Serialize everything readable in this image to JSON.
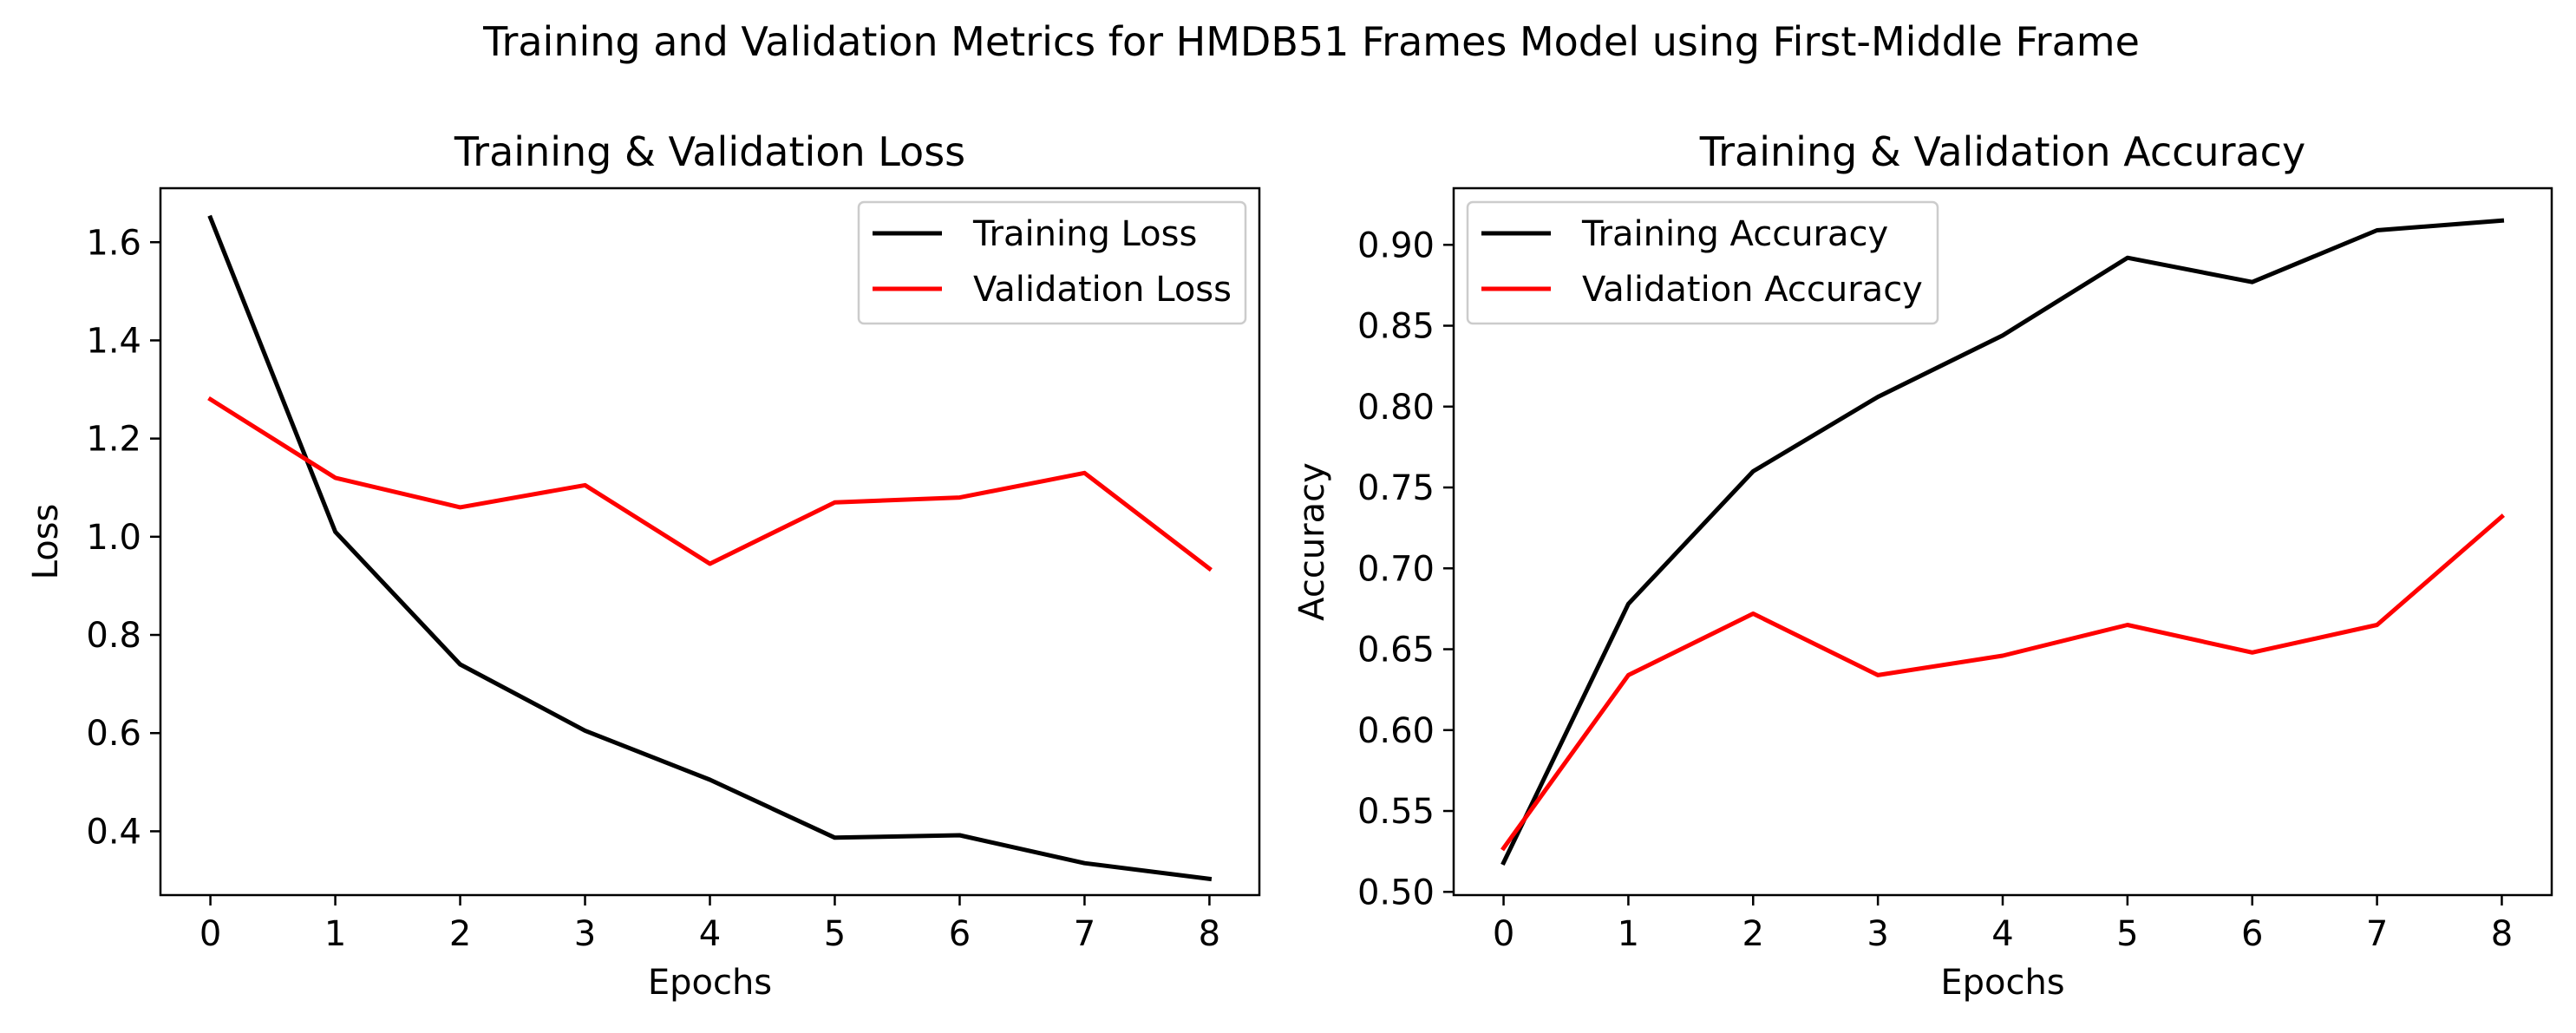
{
  "figure": {
    "suptitle": "Training and Validation Metrics for HMDB51 Frames Model using First-Middle Frame"
  },
  "chart_data": [
    {
      "type": "line",
      "title": "Training & Validation Loss",
      "xlabel": "Epochs",
      "ylabel": "Loss",
      "x": [
        0,
        1,
        2,
        3,
        4,
        5,
        6,
        7,
        8
      ],
      "xlim": [
        -0.4,
        8.4
      ],
      "ylim": [
        0.27,
        1.71
      ],
      "xticks": [
        0,
        1,
        2,
        3,
        4,
        5,
        6,
        7,
        8
      ],
      "yticks": [
        0.4,
        0.6,
        0.8,
        1.0,
        1.2,
        1.4,
        1.6
      ],
      "ytick_labels": [
        "0.4",
        "0.6",
        "0.8",
        "1.0",
        "1.2",
        "1.4",
        "1.6"
      ],
      "grid": false,
      "legend_position": "upper-right",
      "series": [
        {
          "name": "Training Loss",
          "color": "#000000",
          "values": [
            1.65,
            1.01,
            0.74,
            0.605,
            0.505,
            0.387,
            0.392,
            0.335,
            0.303
          ]
        },
        {
          "name": "Validation Loss",
          "color": "#ff0000",
          "values": [
            1.28,
            1.12,
            1.06,
            1.105,
            0.945,
            1.07,
            1.08,
            1.13,
            0.935
          ]
        }
      ]
    },
    {
      "type": "line",
      "title": "Training & Validation Accuracy",
      "xlabel": "Epochs",
      "ylabel": "Accuracy",
      "x": [
        0,
        1,
        2,
        3,
        4,
        5,
        6,
        7,
        8
      ],
      "xlim": [
        -0.4,
        8.4
      ],
      "ylim": [
        0.498,
        0.935
      ],
      "xticks": [
        0,
        1,
        2,
        3,
        4,
        5,
        6,
        7,
        8
      ],
      "yticks": [
        0.5,
        0.55,
        0.6,
        0.65,
        0.7,
        0.75,
        0.8,
        0.85,
        0.9
      ],
      "ytick_labels": [
        "0.50",
        "0.55",
        "0.60",
        "0.65",
        "0.70",
        "0.75",
        "0.80",
        "0.85",
        "0.90"
      ],
      "grid": false,
      "legend_position": "upper-left",
      "series": [
        {
          "name": "Training Accuracy",
          "color": "#000000",
          "values": [
            0.518,
            0.678,
            0.76,
            0.806,
            0.844,
            0.892,
            0.877,
            0.909,
            0.915
          ]
        },
        {
          "name": "Validation Accuracy",
          "color": "#ff0000",
          "values": [
            0.527,
            0.634,
            0.672,
            0.634,
            0.646,
            0.665,
            0.648,
            0.665,
            0.732
          ]
        }
      ]
    }
  ]
}
